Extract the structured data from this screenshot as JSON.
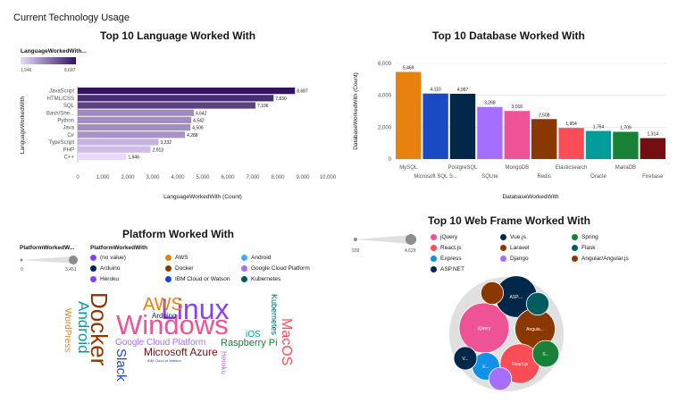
{
  "page": {
    "title": "Current Technology Usage"
  },
  "chart_data": [
    {
      "type": "bar",
      "orientation": "horizontal",
      "title": "Top 10 Language Worked With",
      "xlabel": "LanguageWorkedWith (Count)",
      "ylabel": "LanguageWorkedWith",
      "xlim": [
        0,
        10000
      ],
      "xticks": [
        "0",
        "1,000",
        "2,000",
        "3,000",
        "4,000",
        "5,000",
        "6,000",
        "7,000",
        "8,000",
        "9,000",
        "10,000"
      ],
      "categories": [
        "JavaScript",
        "HTML/CSS",
        "SQL",
        "Bash/She...",
        "Python",
        "Java",
        "C#",
        "TypeScript",
        "PHP",
        "C++"
      ],
      "values": [
        8687,
        7830,
        7106,
        4642,
        4542,
        4506,
        4288,
        3232,
        2913,
        1946
      ],
      "value_labels": [
        "8,687",
        "7,830",
        "7,106",
        "4,642",
        "4,542",
        "4,506",
        "4,288",
        "3,232",
        "2,913",
        "1,946"
      ],
      "color_legend": {
        "title": "LanguageWorkedWith...",
        "min_label": "1,946",
        "max_label": "8,687",
        "low_color": "#e8daff",
        "high_color": "#31135e"
      }
    },
    {
      "type": "bar",
      "title": "Top 10 Database Worked With",
      "xlabel": "DatabaseWorkedWith",
      "ylabel": "DatabaseWorkedWith (Count)",
      "ylim": [
        0,
        6000
      ],
      "yticks": [
        "0",
        "2,000",
        "4,000",
        "6,000"
      ],
      "categories": [
        "MySQL",
        "Microsoft SQL S...",
        "PostgreSQL",
        "SQLite",
        "MongoDB",
        "Redis",
        "Elasticsearch",
        "Oracle",
        "MariaDB",
        "Firebase"
      ],
      "values": [
        5469,
        4110,
        4097,
        3268,
        3016,
        2508,
        1954,
        1764,
        1709,
        1314
      ],
      "value_labels": [
        "5,469",
        "4,110",
        "4,097",
        "3,268",
        "3,016",
        "2,508",
        "1,954",
        "1,764",
        "1,709",
        "1,314"
      ],
      "colors": [
        "#e8810d",
        "#1a49c4",
        "#012749",
        "#a56eff",
        "#ee5396",
        "#8a3800",
        "#fa4d56",
        "#009d9a",
        "#198038",
        "#750e13"
      ]
    },
    {
      "type": "wordcloud",
      "title": "Platform Worked With",
      "size_legend": {
        "title": "PlatformWorkedW...",
        "min_label": "0",
        "max_label": "3,451"
      },
      "color_legend_title": "PlatformWorkedWith",
      "legend": [
        {
          "label": "(no value)",
          "color": "#8a3ffc"
        },
        {
          "label": "AWS",
          "color": "#e8810d"
        },
        {
          "label": "Android",
          "color": "#33b1ff"
        },
        {
          "label": "Arduino",
          "color": "#012749"
        },
        {
          "label": "Docker",
          "color": "#8a3800"
        },
        {
          "label": "Google Cloud Platform",
          "color": "#a56eff"
        },
        {
          "label": "Heroku",
          "color": "#8a3ffc"
        },
        {
          "label": "IBM Cloud or Watson",
          "color": "#1a49c4"
        },
        {
          "label": "Kubernetes",
          "color": "#005d5d"
        }
      ],
      "words": [
        {
          "text": "Linux",
          "color": "#8a3ffc"
        },
        {
          "text": "Windows",
          "color": "#ee5396"
        },
        {
          "text": "Docker",
          "color": "#8a3800"
        },
        {
          "text": "AWS",
          "color": "#e8810d"
        },
        {
          "text": "Android",
          "color": "#009d9a"
        },
        {
          "text": "Slack",
          "color": "#1a49c4"
        },
        {
          "text": "MacOS",
          "color": "#fa4d56"
        },
        {
          "text": "Kubernetes",
          "color": "#005d5d"
        },
        {
          "text": "Raspberry Pi",
          "color": "#198038"
        },
        {
          "text": "Microsoft Azure",
          "color": "#750e13"
        },
        {
          "text": "Google Cloud Platform",
          "color": "#a56eff"
        },
        {
          "text": "iOS",
          "color": "#009d9a"
        },
        {
          "text": "WordPress",
          "color": "#e8810d"
        },
        {
          "text": "Heroku",
          "color": "#a56eff"
        },
        {
          "text": "Arduino",
          "color": "#012749"
        },
        {
          "text": "IBM Cloud or Watson",
          "color": "#1a49c4"
        }
      ]
    },
    {
      "type": "bubble",
      "title": "Top 10 Web Frame Worked With",
      "size_legend": {
        "min_label": "939",
        "max_label": "4,629"
      },
      "legend": [
        {
          "label": "jQuery",
          "color": "#ee5396"
        },
        {
          "label": "Vue.js",
          "color": "#012749"
        },
        {
          "label": "Spring",
          "color": "#198038"
        },
        {
          "label": "React.js",
          "color": "#fa4d56"
        },
        {
          "label": "Laravel",
          "color": "#8a3800"
        },
        {
          "label": "Flask",
          "color": "#005d5d"
        },
        {
          "label": "Express",
          "color": "#1192e8"
        },
        {
          "label": "Django",
          "color": "#a56eff"
        },
        {
          "label": "Angular/Angular.js",
          "color": "#8a3800"
        },
        {
          "label": "ASP.NET",
          "color": "#012749"
        }
      ],
      "bubbles": [
        {
          "name": "jQuery",
          "label": "jQuery",
          "value": 4629,
          "color": "#ee5396"
        },
        {
          "name": "ASP.NET",
          "label": "ASP....",
          "value": 3200,
          "color": "#012749"
        },
        {
          "name": "Angular/Angular.js",
          "label": "Angula...",
          "value": 3000,
          "color": "#8a3800"
        },
        {
          "name": "React.js",
          "label": "React.js",
          "value": 2900,
          "color": "#fa4d56"
        },
        {
          "name": "Express",
          "label": "E...",
          "value": 1400,
          "color": "#1192e8"
        },
        {
          "name": "Spring",
          "label": "S...",
          "value": 1300,
          "color": "#198038"
        },
        {
          "name": "Vue.js",
          "label": "V...",
          "value": 1000,
          "color": "#012749"
        },
        {
          "name": "Django",
          "label": "",
          "value": 960,
          "color": "#a56eff"
        },
        {
          "name": "Flask",
          "label": "",
          "value": 950,
          "color": "#005d5d"
        },
        {
          "name": "Laravel",
          "label": "",
          "value": 939,
          "color": "#8a3800"
        }
      ]
    }
  ]
}
